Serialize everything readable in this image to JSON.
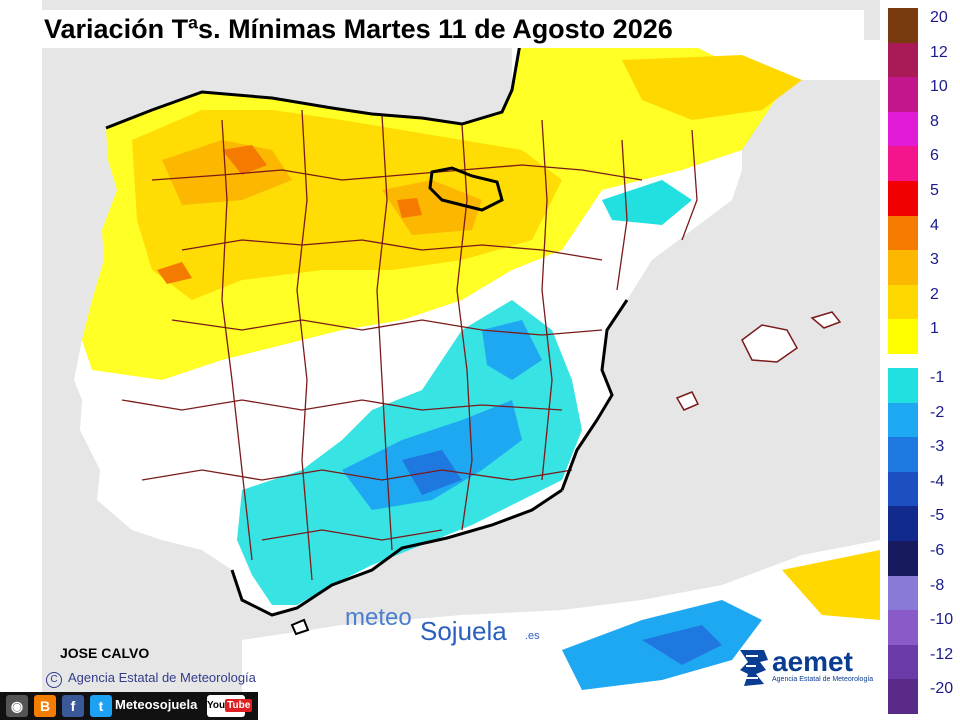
{
  "title": "Variación Tªs. Mínimas Martes 11 de Agosto 2026",
  "legend": {
    "items": [
      {
        "label": "20",
        "color": "#7a3a10"
      },
      {
        "label": "12",
        "color": "#a81b56"
      },
      {
        "label": "10",
        "color": "#c4168c"
      },
      {
        "label": "8",
        "color": "#e21bd6"
      },
      {
        "label": "6",
        "color": "#f4148c"
      },
      {
        "label": "5",
        "color": "#f00000"
      },
      {
        "label": "4",
        "color": "#f57a00"
      },
      {
        "label": "3",
        "color": "#fcb800"
      },
      {
        "label": "2",
        "color": "#ffd800"
      },
      {
        "label": "1",
        "color": "#ffff00"
      },
      {
        "label": "-1",
        "color": "#22e0e0"
      },
      {
        "label": "-2",
        "color": "#1fa8f2"
      },
      {
        "label": "-3",
        "color": "#1f78e0"
      },
      {
        "label": "-4",
        "color": "#1c4fc0"
      },
      {
        "label": "-5",
        "color": "#122a8c"
      },
      {
        "label": "-6",
        "color": "#181a60"
      },
      {
        "label": "-8",
        "color": "#8a7ad8"
      },
      {
        "label": "-10",
        "color": "#8a5ac8"
      },
      {
        "label": "-12",
        "color": "#6a3aa8"
      },
      {
        "label": "-20",
        "color": "#5a2a88"
      }
    ]
  },
  "author": "JOSE CALVO",
  "credit": "Agencia Estatal de Meteorología",
  "credit_symbol": "C",
  "watermark": {
    "meteo": "meteo",
    "sojuela": "Sojuela",
    "tld": ".es"
  },
  "aemet": {
    "name": "aemet",
    "subtitle": "Agencia Estatal de Meteorología"
  },
  "social": {
    "name": "Meteosojuela",
    "youtube_you": "You",
    "youtube_tube": "Tube",
    "icons": [
      "camera-icon",
      "blogger-icon",
      "facebook-icon",
      "twitter-icon"
    ]
  },
  "colors": {
    "sea": "#e6e6e6",
    "land": "#ffffff",
    "border": "#7a1a1a",
    "coast": "#000000"
  }
}
